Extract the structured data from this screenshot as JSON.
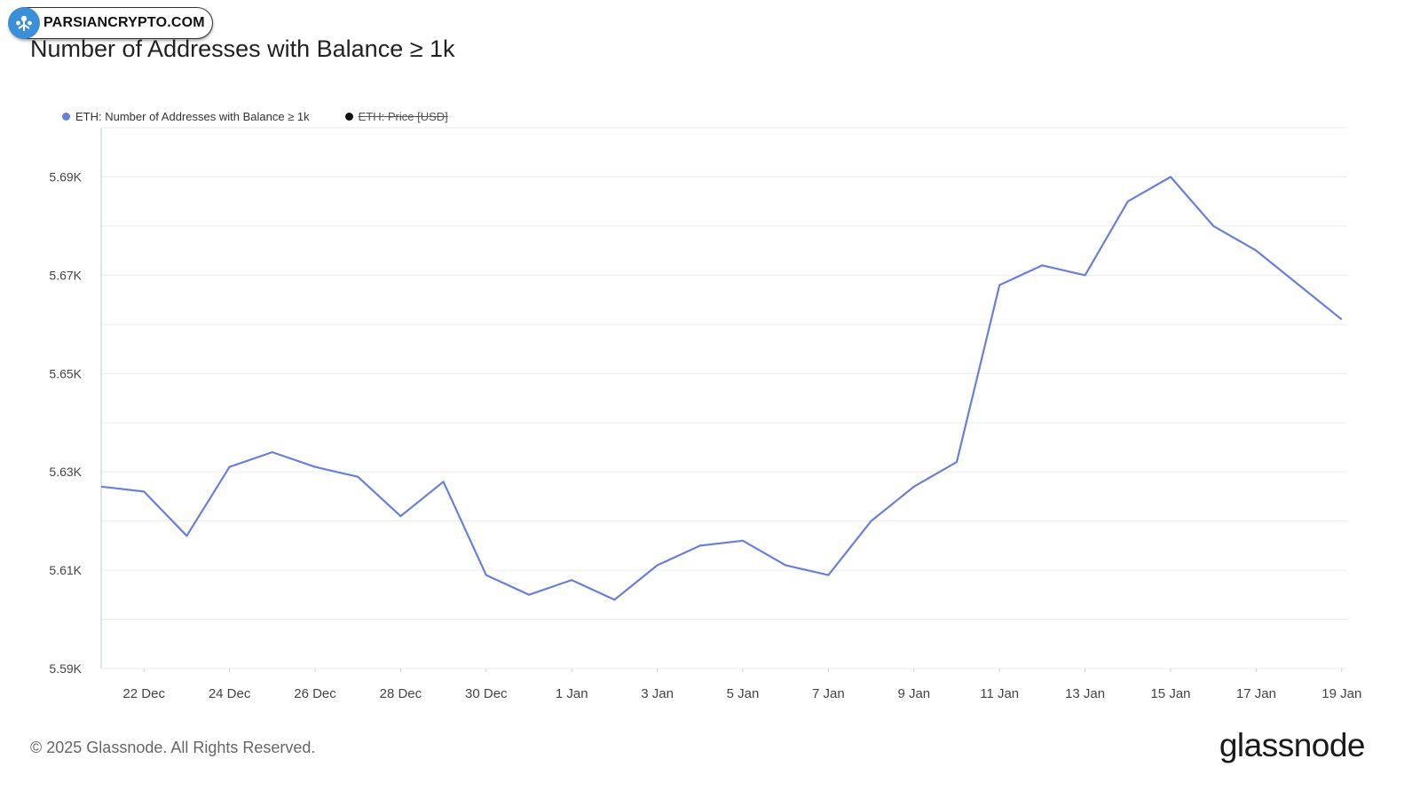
{
  "watermark": {
    "text": "PARSIANCRYPTO.COM",
    "logo_icon": "crypto-logo-icon",
    "color": "#3b8fd6"
  },
  "footer": {
    "copyright": "© 2025 Glassnode. All Rights Reserved.",
    "brand": "glassnode"
  },
  "chart_data": {
    "type": "line",
    "title": "Number of Addresses with Balance ≥ 1k",
    "legend": [
      {
        "label": "ETH: Number of Addresses with Balance ≥ 1k",
        "color": "#6a7fdb",
        "active": true
      },
      {
        "label": "ETH: Price [USD]",
        "color": "#111111",
        "active": false
      }
    ],
    "legend_position": "top-left",
    "grid": true,
    "x_ticks": [
      "22 Dec",
      "24 Dec",
      "26 Dec",
      "28 Dec",
      "30 Dec",
      "1 Jan",
      "3 Jan",
      "5 Jan",
      "7 Jan",
      "9 Jan",
      "11 Jan",
      "13 Jan",
      "15 Jan",
      "17 Jan",
      "19 Jan"
    ],
    "y_ticks": [
      "5.59K",
      "5.61K",
      "5.63K",
      "5.65K",
      "5.67K",
      "5.69K"
    ],
    "ylim": [
      5590,
      5700
    ],
    "x_start": "2024-12-21",
    "series": [
      {
        "name": "ETH: Number of Addresses with Balance ≥ 1k",
        "color": "#6a7fdb",
        "x": [
          "2024-12-21",
          "2024-12-22",
          "2024-12-23",
          "2024-12-24",
          "2024-12-25",
          "2024-12-26",
          "2024-12-27",
          "2024-12-28",
          "2024-12-29",
          "2024-12-30",
          "2024-12-31",
          "2025-01-01",
          "2025-01-02",
          "2025-01-03",
          "2025-01-04",
          "2025-01-05",
          "2025-01-06",
          "2025-01-07",
          "2025-01-08",
          "2025-01-09",
          "2025-01-10",
          "2025-01-11",
          "2025-01-12",
          "2025-01-13",
          "2025-01-14",
          "2025-01-15",
          "2025-01-16",
          "2025-01-17",
          "2025-01-18",
          "2025-01-19"
        ],
        "values": [
          5627,
          5626,
          5617,
          5631,
          5634,
          5631,
          5629,
          5621,
          5628,
          5609,
          5605,
          5608,
          5604,
          5611,
          5615,
          5616,
          5611,
          5609,
          5620,
          5627,
          5632,
          5668,
          5672,
          5670,
          5685,
          5690,
          5680,
          5675,
          5668,
          5661
        ]
      }
    ]
  }
}
